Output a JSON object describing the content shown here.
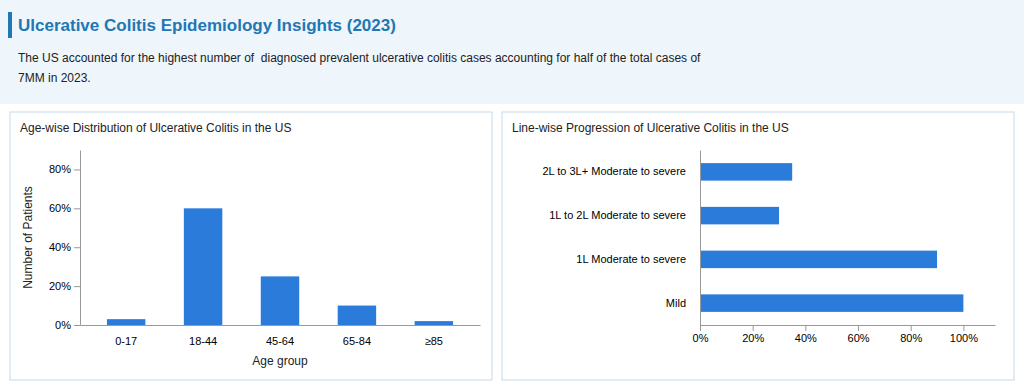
{
  "title": "Ulcerative Colitis Epidemiology Insights (2023)",
  "subtitle": [
    "The US accounted for the highest number of  diagnosed prevalent ulcerative colitis cases accounting for half of the total cases of",
    "7MM in 2023."
  ],
  "chart_data": [
    {
      "type": "bar",
      "title": "Age-wise Distribution of Ulcerative Colitis in the US",
      "categories": [
        "0-17",
        "18-44",
        "45-64",
        "65-84",
        "≥85"
      ],
      "values": [
        3,
        60,
        25,
        10,
        2
      ],
      "color": "#2b7bdb",
      "xlabel": "Age group",
      "ylabel": "Number of Patients",
      "ylim": [
        0,
        90
      ],
      "yticks": [
        {
          "value": 0,
          "label": "0%"
        },
        {
          "value": 20,
          "label": "20%"
        },
        {
          "value": 40,
          "label": "40%"
        },
        {
          "value": 60,
          "label": "60%"
        },
        {
          "value": 80,
          "label": "80%"
        }
      ],
      "grid": false
    },
    {
      "type": "bar",
      "orientation": "horizontal",
      "title": "Line-wise Progression of Ulcerative Colitis in the US",
      "categories": [
        "Mild",
        "1L Moderate to severe",
        "1L to 2L Moderate to severe",
        "2L to 3L+ Moderate to severe"
      ],
      "values": [
        100,
        90,
        30,
        35
      ],
      "color": "#2b7bdb",
      "xlim": [
        0,
        112
      ],
      "xticks": [
        {
          "value": 0,
          "label": "0%"
        },
        {
          "value": 20,
          "label": "20%"
        },
        {
          "value": 40,
          "label": "40%"
        },
        {
          "value": 60,
          "label": "60%"
        },
        {
          "value": 80,
          "label": "80%"
        },
        {
          "value": 100,
          "label": "100%"
        }
      ],
      "grid": false
    }
  ]
}
